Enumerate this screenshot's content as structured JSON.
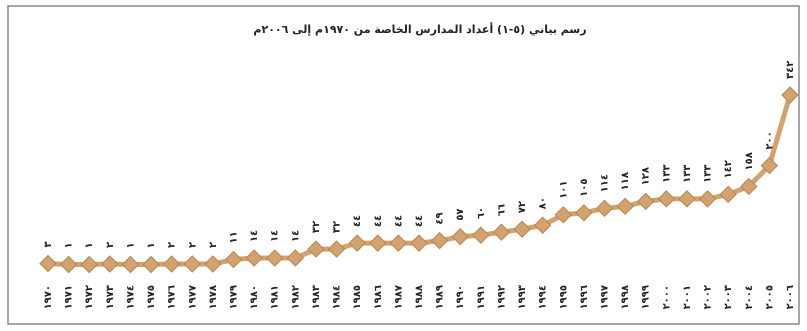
{
  "chart_data": {
    "type": "line",
    "title": "رسم بياني (٥-١) أعداد المدارس الخاصة من ١٩٧٠م إلى ٢٠٠٦م",
    "categories": [
      "١٩٧٠",
      "١٩٧١",
      "١٩٧٢",
      "١٩٧٣",
      "١٩٧٤",
      "١٩٧٥",
      "١٩٧٦",
      "١٩٧٧",
      "١٩٧٨",
      "١٩٧٩",
      "١٩٨٠",
      "١٩٨١",
      "١٩٨٢",
      "١٩٨٣",
      "١٩٨٤",
      "١٩٨٥",
      "١٩٨٦",
      "١٩٨٧",
      "١٩٨٨",
      "١٩٨٩",
      "١٩٩٠",
      "١٩٩١",
      "١٩٩٢",
      "١٩٩٣",
      "١٩٩٤",
      "١٩٩٥",
      "١٩٩٦",
      "١٩٩٧",
      "١٩٩٨",
      "١٩٩٩",
      "٢٠٠٠",
      "٢٠٠١",
      "٢٠٠٢",
      "٢٠٠٣",
      "٢٠٠٤",
      "٢٠٠٥",
      "٢٠٠٦"
    ],
    "values": [
      3,
      1,
      1,
      2,
      1,
      1,
      2,
      2,
      2,
      11,
      14,
      14,
      14,
      32,
      32,
      44,
      44,
      44,
      44,
      49,
      57,
      60,
      66,
      72,
      80,
      101,
      105,
      114,
      118,
      128,
      133,
      133,
      133,
      142,
      158,
      200,
      342
    ],
    "value_labels": [
      "٣",
      "١",
      "١",
      "٢",
      "١",
      "١",
      "٢",
      "٢",
      "٢",
      "١١",
      "١٤",
      "١٤",
      "١٤",
      "٣٢",
      "٣٢",
      "٤٤",
      "٤٤",
      "٤٤",
      "٤٤",
      "٤٩",
      "٥٧",
      "٦٠",
      "٦٦",
      "٧٢",
      "٨٠",
      "١٠١",
      "١٠٥",
      "١١٤",
      "١١٨",
      "١٢٨",
      "١٣٣",
      "١٣٣",
      "١٣٣",
      "١٤٢",
      "١٥٨",
      "٢٠٠",
      "٣٤٢"
    ],
    "color": "#d2a36e"
  }
}
